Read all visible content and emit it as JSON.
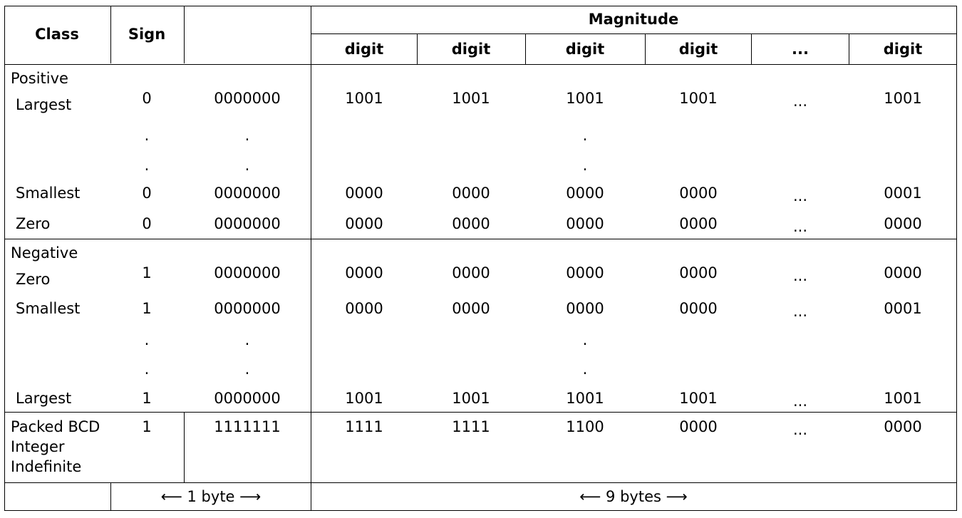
{
  "header": {
    "class": "Class",
    "sign": "Sign",
    "magnitude": "Magnitude",
    "digits": [
      "digit",
      "digit",
      "digit",
      "digit",
      "...",
      "digit"
    ]
  },
  "positive": {
    "group_label": "Positive",
    "largest": {
      "label": "Largest",
      "sign": "0",
      "exp": "0000000",
      "digits": [
        "1001",
        "1001",
        "1001",
        "1001",
        "...",
        "1001"
      ]
    },
    "smallest": {
      "label": "Smallest",
      "sign": "0",
      "exp": "0000000",
      "digits": [
        "0000",
        "0000",
        "0000",
        "0000",
        "...",
        "0001"
      ]
    },
    "zero": {
      "label": "Zero",
      "sign": "0",
      "exp": "0000000",
      "digits": [
        "0000",
        "0000",
        "0000",
        "0000",
        "...",
        "0000"
      ]
    }
  },
  "negative": {
    "group_label": "Negative",
    "zero": {
      "label": "Zero",
      "sign": "1",
      "exp": "0000000",
      "digits": [
        "0000",
        "0000",
        "0000",
        "0000",
        "...",
        "0000"
      ]
    },
    "smallest": {
      "label": "Smallest",
      "sign": "1",
      "exp": "0000000",
      "digits": [
        "0000",
        "0000",
        "0000",
        "0000",
        "...",
        "0001"
      ]
    },
    "largest": {
      "label": "Largest",
      "sign": "1",
      "exp": "0000000",
      "digits": [
        "1001",
        "1001",
        "1001",
        "1001",
        "...",
        "1001"
      ]
    }
  },
  "indefinite": {
    "label_lines": [
      "Packed BCD",
      "Integer",
      "Indefinite"
    ],
    "sign": "1",
    "exp": "1111111",
    "digits": [
      "1111",
      "1111",
      "1100",
      "0000",
      "...",
      "0000"
    ]
  },
  "footer": {
    "sign_span": "⟵ 1 byte ⟶",
    "magnitude_span": "⟵ 9 bytes ⟶"
  },
  "ellipsis_dot": "."
}
